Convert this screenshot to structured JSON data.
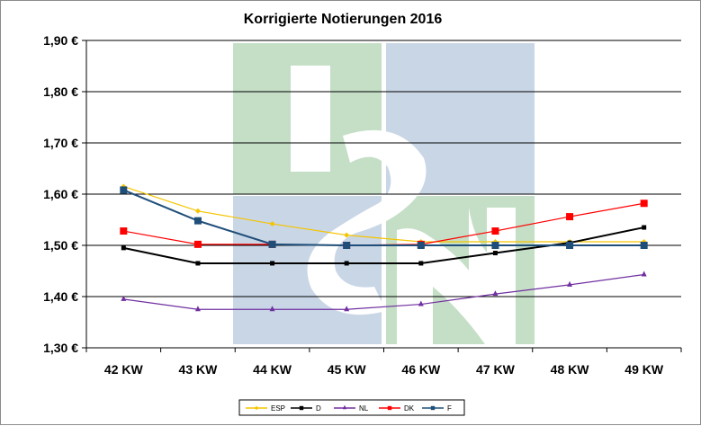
{
  "chart_data": {
    "type": "line",
    "title": "Korrigierte Notierungen 2016",
    "categories": [
      "42 KW",
      "43 KW",
      "44 KW",
      "45 KW",
      "46 KW",
      "47 KW",
      "48 KW",
      "49 KW"
    ],
    "y_ticks": [
      "1,30 €",
      "1,40 €",
      "1,50 €",
      "1,60 €",
      "1,70 €",
      "1,80 €",
      "1,90 €"
    ],
    "ylim": [
      1.3,
      1.9
    ],
    "grid": true,
    "legend_position": "bottom",
    "series": [
      {
        "name": "ESP",
        "color": "#f5c400",
        "marker": "diamond",
        "values": [
          1.615,
          1.567,
          1.542,
          1.52,
          1.507,
          1.507,
          1.507,
          1.507
        ]
      },
      {
        "name": "D",
        "color": "#000000",
        "marker": "square",
        "values": [
          1.495,
          1.465,
          1.465,
          1.465,
          1.465,
          1.485,
          1.505,
          1.535
        ]
      },
      {
        "name": "NL",
        "color": "#7030a0",
        "marker": "triangle",
        "values": [
          1.395,
          1.375,
          1.375,
          1.375,
          1.385,
          1.405,
          1.423,
          1.443
        ]
      },
      {
        "name": "DK",
        "color": "#ff0000",
        "marker": "square",
        "values": [
          1.528,
          1.502,
          1.502,
          1.5,
          1.502,
          1.528,
          1.556,
          1.582
        ]
      },
      {
        "name": "F",
        "color": "#1f4e79",
        "marker": "square",
        "values": [
          1.608,
          1.548,
          1.502,
          1.5,
          1.5,
          1.5,
          1.5,
          1.5
        ]
      }
    ],
    "watermark": {
      "text": "ISN",
      "colors": [
        "#c5dfc7",
        "#c9d6e6"
      ]
    }
  }
}
